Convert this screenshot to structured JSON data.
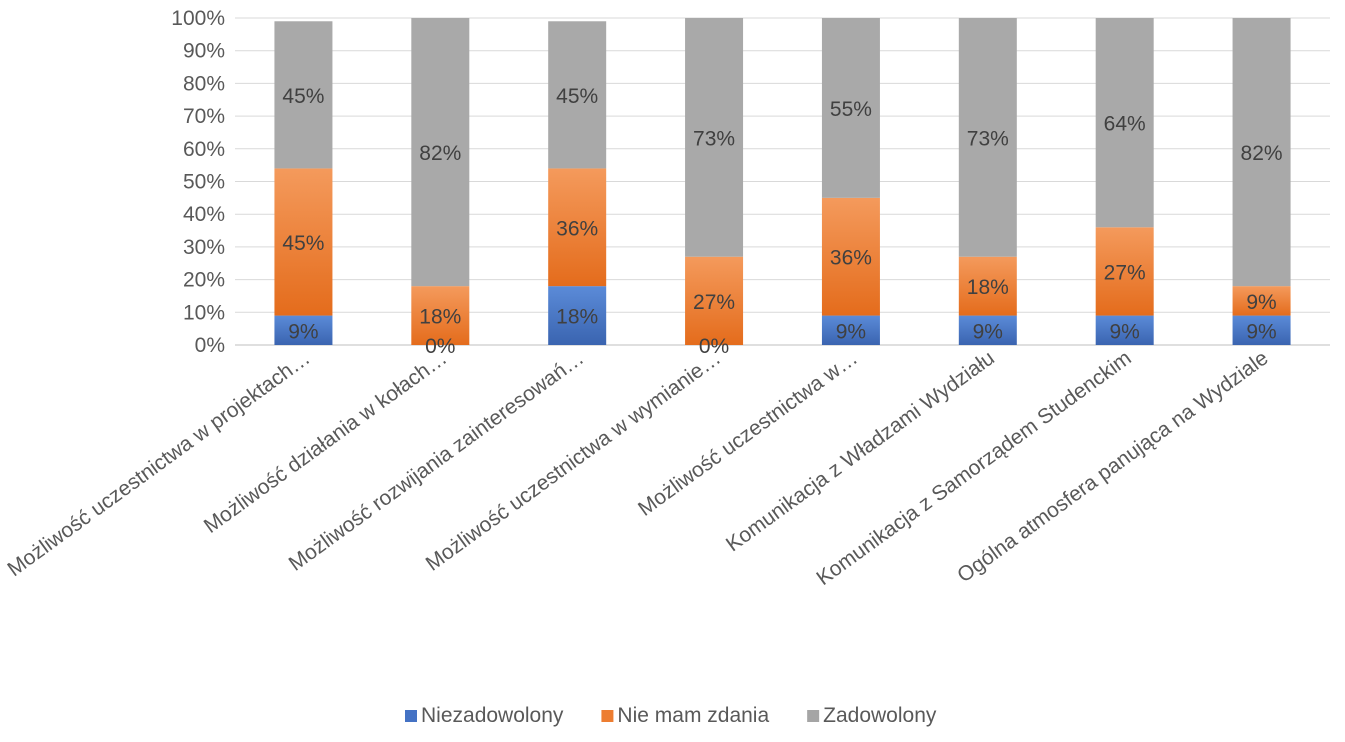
{
  "chart_data": {
    "type": "bar",
    "stacked": true,
    "percent_stacked": true,
    "categories": [
      "Możliwość uczestnictwa w projektach…",
      "Możliwość działania w kołach…",
      "Możliwość rozwijania zainteresowań…",
      "Możliwość uczestnictwa w wymianie…",
      "Możliwość uczestnictwa w…",
      "Komunikacja z Władzami Wydziału",
      "Komunikacja z Samorządem Studenckim",
      "Ogólna atmosfera panująca na Wydziale"
    ],
    "series": [
      {
        "name": "Niezadowolony",
        "color": "#4472C4",
        "values": [
          9,
          0,
          18,
          0,
          9,
          9,
          9,
          9
        ],
        "labels": [
          "9%",
          "0%",
          "18%",
          "0%",
          "9%",
          "9%",
          "9%",
          "9%"
        ]
      },
      {
        "name": "Nie mam zdania",
        "color": "#ED7D31",
        "values": [
          45,
          18,
          36,
          27,
          36,
          18,
          27,
          9
        ],
        "labels": [
          "45%",
          "18%",
          "36%",
          "27%",
          "36%",
          "18%",
          "27%",
          "9%"
        ]
      },
      {
        "name": "Zadowolony",
        "color": "#A5A5A5",
        "values": [
          45,
          82,
          45,
          73,
          55,
          73,
          64,
          82
        ],
        "labels": [
          "45%",
          "82%",
          "45%",
          "73%",
          "55%",
          "73%",
          "64%",
          "82%"
        ]
      }
    ],
    "y_ticks": [
      "0%",
      "10%",
      "20%",
      "30%",
      "40%",
      "50%",
      "60%",
      "70%",
      "80%",
      "90%",
      "100%"
    ],
    "ylim": [
      0,
      100
    ],
    "grid": true,
    "legend_position": "bottom"
  }
}
